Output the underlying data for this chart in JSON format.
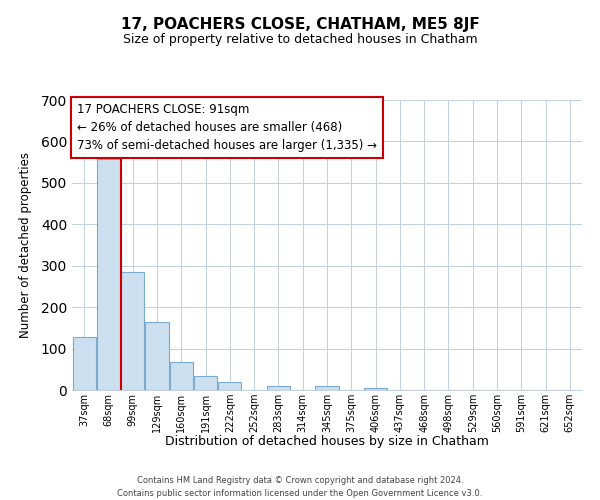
{
  "title": "17, POACHERS CLOSE, CHATHAM, ME5 8JF",
  "subtitle": "Size of property relative to detached houses in Chatham",
  "xlabel": "Distribution of detached houses by size in Chatham",
  "ylabel": "Number of detached properties",
  "bar_color": "#cce0f0",
  "bar_edge_color": "#7aabcf",
  "bin_labels": [
    "37sqm",
    "68sqm",
    "99sqm",
    "129sqm",
    "160sqm",
    "191sqm",
    "222sqm",
    "252sqm",
    "283sqm",
    "314sqm",
    "345sqm",
    "375sqm",
    "406sqm",
    "437sqm",
    "468sqm",
    "498sqm",
    "529sqm",
    "560sqm",
    "591sqm",
    "621sqm",
    "652sqm"
  ],
  "bar_heights": [
    128,
    557,
    285,
    165,
    68,
    33,
    20,
    0,
    10,
    0,
    10,
    0,
    5,
    0,
    0,
    0,
    0,
    0,
    0,
    0,
    0
  ],
  "ylim": [
    0,
    700
  ],
  "yticks": [
    0,
    100,
    200,
    300,
    400,
    500,
    600,
    700
  ],
  "vline_x": 1.5,
  "annotation_title": "17 POACHERS CLOSE: 91sqm",
  "annotation_line1": "← 26% of detached houses are smaller (468)",
  "annotation_line2": "73% of semi-detached houses are larger (1,335) →",
  "vline_color": "#cc0000",
  "annotation_box_edge": "#cc0000",
  "footer_line1": "Contains HM Land Registry data © Crown copyright and database right 2024.",
  "footer_line2": "Contains public sector information licensed under the Open Government Licence v3.0."
}
